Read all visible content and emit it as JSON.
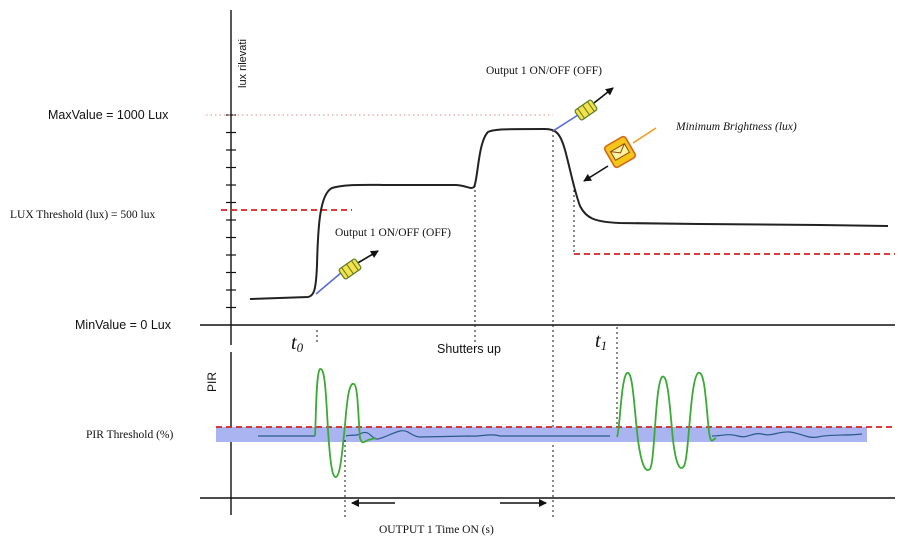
{
  "labels": {
    "y_axis_lux": "lux rilevati",
    "max_value": "MaxValue = 1000 Lux",
    "lux_threshold": "LUX Threshold (lux) = 500 lux",
    "min_value": "MinValue = 0 Lux",
    "output_top": "Output 1 ON/OFF (OFF)",
    "output_mid": "Output 1 ON/OFF (OFF)",
    "min_brightness": "Minimum Brightness (lux)",
    "t0": "t",
    "t0_sub": "0",
    "t1": "t",
    "t1_sub": "1",
    "shutters_up": "Shutters up",
    "pir_axis": "PIR",
    "pir_threshold": "PIR Threshold (%)",
    "output_time": "OUTPUT 1 Time ON (s)"
  },
  "colors": {
    "threshold_red": "#d62020",
    "pir_signal_green": "#3aaa35",
    "pir_baseline_blue": "#2a5a8a",
    "pir_band": "#aab4f0",
    "marker_yellow": "#f5e14a",
    "alert_orange": "#f39a1f",
    "arrow_blue": "#5a6ad8"
  },
  "icons": [
    "shutter-open-icon",
    "alarm-icon"
  ]
}
